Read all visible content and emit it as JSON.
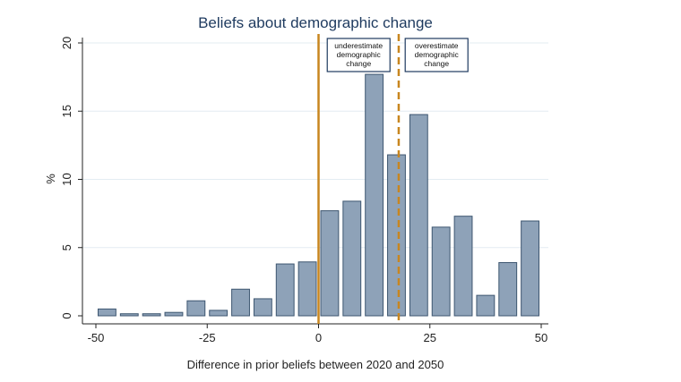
{
  "chart_data": {
    "type": "bar",
    "title": "Beliefs about demographic change",
    "xlabel": "Difference in prior beliefs between 2020 and 2050",
    "ylabel": "%",
    "xlim": [
      -52.5,
      52.5
    ],
    "ylim": [
      0,
      20.5
    ],
    "xticks": [
      -50,
      -25,
      0,
      25,
      50
    ],
    "yticks": [
      0,
      5,
      10,
      15,
      20
    ],
    "bin_width": 5,
    "grid": true,
    "bins": [
      {
        "x": -47.5,
        "value": 0.5
      },
      {
        "x": -42.5,
        "value": 0.15
      },
      {
        "x": -37.5,
        "value": 0.15
      },
      {
        "x": -32.5,
        "value": 0.25
      },
      {
        "x": -27.5,
        "value": 1.1
      },
      {
        "x": -22.5,
        "value": 0.4
      },
      {
        "x": -17.5,
        "value": 1.95
      },
      {
        "x": -12.5,
        "value": 1.25
      },
      {
        "x": -7.5,
        "value": 3.8
      },
      {
        "x": -2.5,
        "value": 3.95
      },
      {
        "x": 2.5,
        "value": 7.7
      },
      {
        "x": 7.5,
        "value": 8.4
      },
      {
        "x": 12.5,
        "value": 17.7
      },
      {
        "x": 17.5,
        "value": 11.8
      },
      {
        "x": 22.5,
        "value": 14.75
      },
      {
        "x": 27.5,
        "value": 6.5
      },
      {
        "x": 32.5,
        "value": 7.3
      },
      {
        "x": 37.5,
        "value": 1.5
      },
      {
        "x": 42.5,
        "value": 3.9
      },
      {
        "x": 47.5,
        "value": 6.95
      }
    ],
    "reference_lines": [
      {
        "x": 0,
        "style": "solid",
        "color": "#c8861f"
      },
      {
        "x": 18,
        "style": "dashed",
        "color": "#c8861f"
      }
    ],
    "annotations": [
      {
        "lines": [
          "underestimate",
          "demographic",
          "change"
        ],
        "anchor_x": 9
      },
      {
        "lines": [
          "overestimate",
          "demographic",
          "change"
        ],
        "anchor_x": 26.5
      }
    ],
    "bar_color": "#8ea2b8",
    "bar_edge_color": "#3d5670"
  }
}
